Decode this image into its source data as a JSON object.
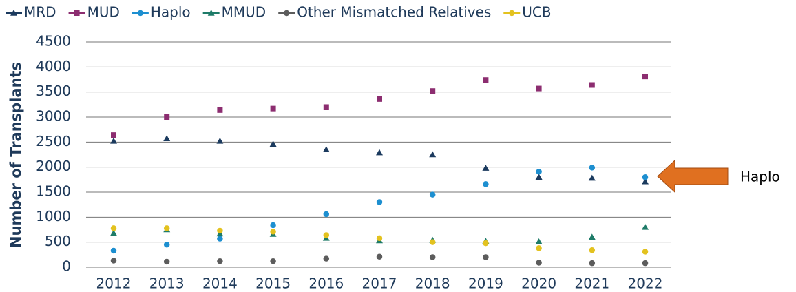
{
  "chart_data": {
    "type": "line",
    "y_label": "Number of Transplants",
    "annotation": "Haplo",
    "categories": [
      "2012",
      "2013",
      "2014",
      "2015",
      "2016",
      "2017",
      "2018",
      "2019",
      "2020",
      "2021",
      "2022"
    ],
    "series": [
      {
        "name": "MRD",
        "color": "#1b3a5e",
        "marker": "triangle",
        "values": [
          2520,
          2570,
          2520,
          2460,
          2350,
          2290,
          2250,
          1980,
          1800,
          1780,
          1710
        ]
      },
      {
        "name": "MUD",
        "color": "#8c2d70",
        "marker": "square",
        "values": [
          2640,
          3000,
          3140,
          3170,
          3200,
          3360,
          3520,
          3740,
          3570,
          3640,
          3810
        ]
      },
      {
        "name": "Haplo",
        "color": "#1d8fd0",
        "marker": "circle",
        "values": [
          330,
          450,
          570,
          840,
          1060,
          1300,
          1450,
          1660,
          1910,
          1990,
          1800
        ]
      },
      {
        "name": "MMUD",
        "color": "#1e7b68",
        "marker": "triangle",
        "values": [
          680,
          750,
          670,
          660,
          580,
          530,
          540,
          520,
          510,
          600,
          800
        ]
      },
      {
        "name": "Other Mismatched Relatives",
        "color": "#5c5c5c",
        "marker": "circle",
        "values": [
          130,
          110,
          120,
          120,
          170,
          210,
          200,
          200,
          90,
          80,
          80
        ]
      },
      {
        "name": "UCB",
        "color": "#e3c21f",
        "marker": "circle",
        "values": [
          780,
          780,
          730,
          710,
          640,
          580,
          500,
          480,
          380,
          340,
          310
        ]
      }
    ],
    "ylim": [
      0,
      4500
    ],
    "yticks": [
      0,
      500,
      1000,
      1500,
      2000,
      2500,
      3000,
      3500,
      4000,
      4500
    ],
    "grid": true
  }
}
